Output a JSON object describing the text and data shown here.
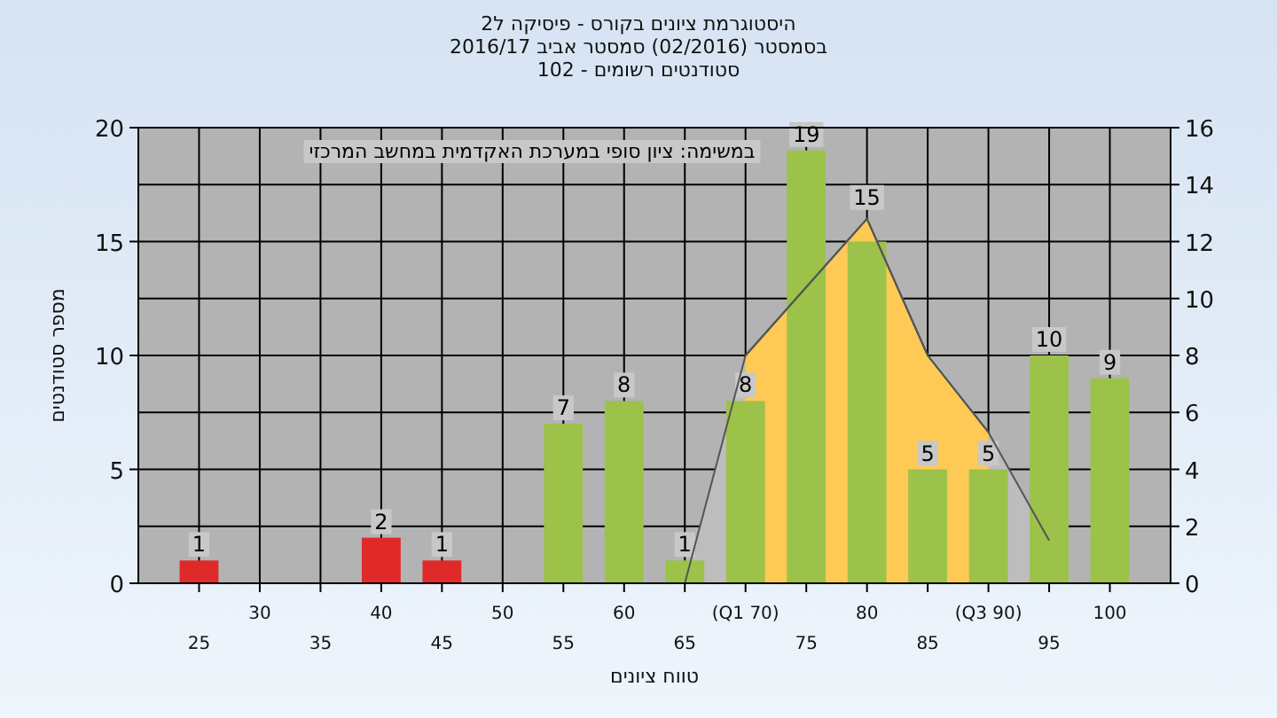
{
  "chart_data": {
    "type": "bar",
    "title": "היסטוגרמת ציונים בקורס - פיסיקה ל2",
    "subtitle": "בסמסטר (02/2016) סמסטר אביב 2016/17\nסטודנטים רשומים - 102",
    "xlabel": "טווח ציונים",
    "ylabel": "מספר סטודנטים",
    "annotations": [
      "במשימה: ציון סופי במערכת האקדמית במחשב המרכזי"
    ],
    "categories": [
      "25",
      "30",
      "35",
      "40",
      "45",
      "50",
      "55",
      "60",
      "65",
      "(Q1 70)",
      "75",
      "80",
      "85",
      "(Q3 90)",
      "95",
      "100"
    ],
    "ylim": [
      0,
      20
    ],
    "yticks": [
      0,
      5,
      10,
      15,
      20
    ],
    "y2lim": [
      0,
      16
    ],
    "y2ticks": [
      0,
      2,
      4,
      6,
      8,
      10,
      12,
      14,
      16
    ],
    "grid": true,
    "series": [
      {
        "type": "area",
        "axis": "y2",
        "color": "#bdbdbd",
        "values": [
          null,
          null,
          null,
          null,
          null,
          null,
          null,
          null,
          0,
          8,
          null,
          12.8,
          8,
          5.3,
          1.5,
          null
        ]
      },
      {
        "type": "area",
        "axis": "y2",
        "color": "#ffc955",
        "values": [
          null,
          null,
          null,
          null,
          null,
          null,
          null,
          null,
          null,
          8,
          null,
          12.8,
          8,
          5.3,
          null,
          null
        ]
      },
      {
        "type": "bar",
        "colors": [
          "#e02a2a",
          "#e02a2a",
          "#e02a2a",
          "#e02a2a",
          "#e02a2a",
          "#e02a2a",
          "#9cc24a",
          "#9cc24a",
          "#9cc24a",
          "#9cc24a",
          "#9cc24a",
          "#9cc24a",
          "#9cc24a",
          "#9cc24a",
          "#9cc24a",
          "#9cc24a"
        ],
        "values": [
          1,
          0,
          0,
          2,
          1,
          0,
          7,
          8,
          1,
          8,
          19,
          15,
          5,
          5,
          10,
          9
        ],
        "value_labels": [
          "1",
          null,
          null,
          "2",
          "1",
          null,
          "7",
          "8",
          "1",
          "8",
          "19",
          "15",
          "5",
          "5",
          "10",
          "9"
        ]
      }
    ]
  }
}
